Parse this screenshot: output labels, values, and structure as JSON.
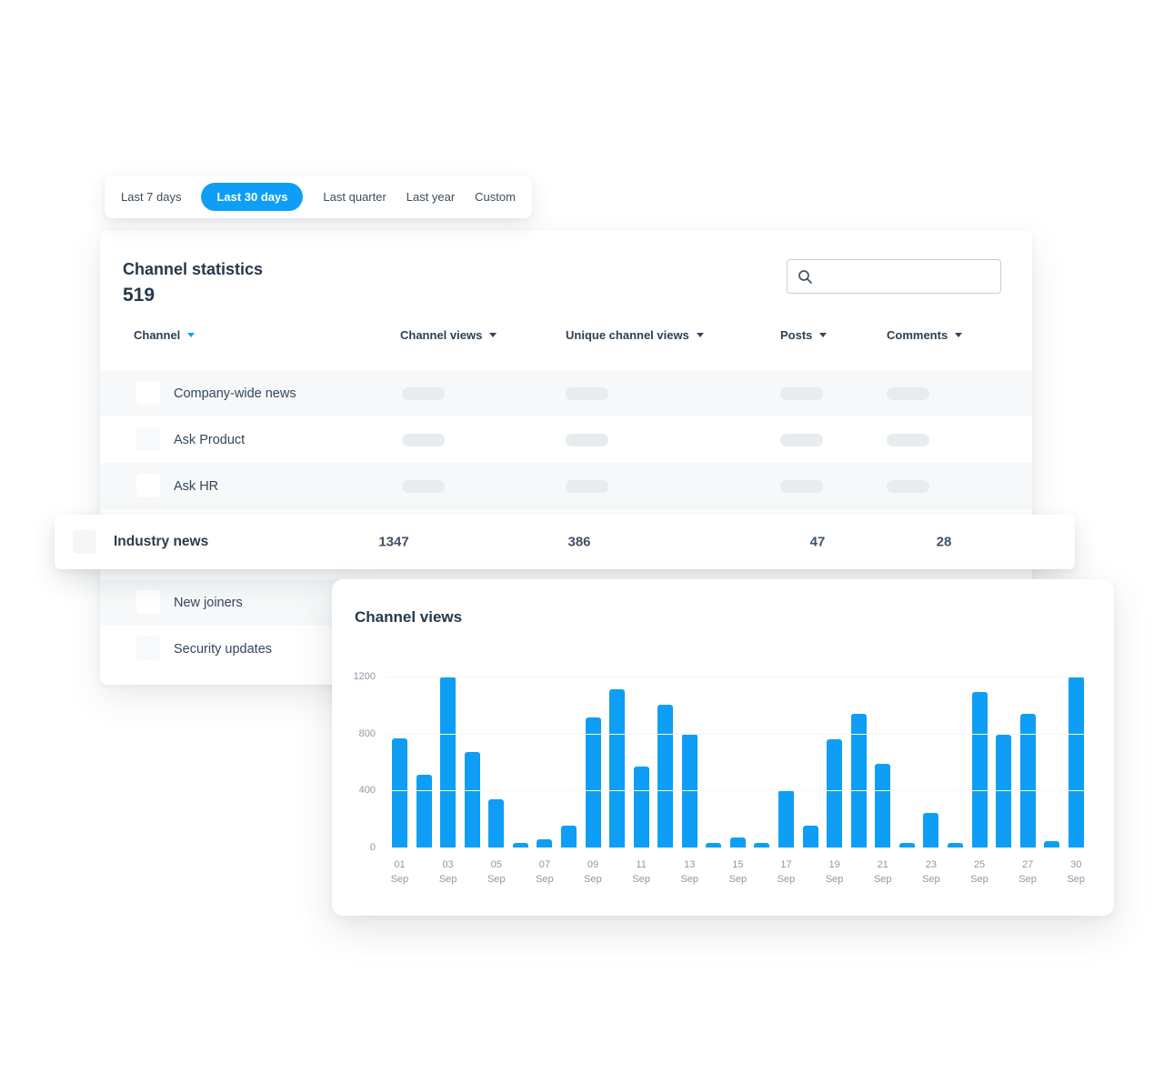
{
  "filters": {
    "items": [
      {
        "label": "Last 7 days",
        "active": false
      },
      {
        "label": "Last 30 days",
        "active": true
      },
      {
        "label": "Last quarter",
        "active": false
      },
      {
        "label": "Last year",
        "active": false
      },
      {
        "label": "Custom",
        "active": false
      }
    ]
  },
  "stats_card": {
    "title": "Channel statistics",
    "total": "519",
    "search": {
      "value": "",
      "placeholder": ""
    },
    "table": {
      "columns": [
        {
          "label": "Channel",
          "sorted": true
        },
        {
          "label": "Channel views",
          "sorted": false
        },
        {
          "label": "Unique channel views",
          "sorted": false
        },
        {
          "label": "Posts",
          "sorted": false
        },
        {
          "label": "Comments",
          "sorted": false
        }
      ],
      "rows": [
        {
          "name": "Company-wide news"
        },
        {
          "name": "Ask Product"
        },
        {
          "name": "Ask HR"
        },
        {
          "name": "New joiners"
        },
        {
          "name": "Security updates"
        }
      ],
      "highlighted_row": {
        "name": "Industry news",
        "channel_views": "1347",
        "unique_channel_views": "386",
        "posts": "47",
        "comments": "28"
      }
    }
  },
  "chart_card": {
    "title": "Channel views"
  },
  "chart_data": {
    "type": "bar",
    "title": "Channel views",
    "xlabel": "",
    "ylabel": "",
    "ylim": [
      0,
      1200
    ],
    "yticks": [
      0,
      400,
      800,
      1200
    ],
    "grid": "faint-horizontal",
    "legend": "none",
    "bar_color": "#0f9ef5",
    "bars": [
      {
        "date": "01 Sep",
        "value": 765,
        "label_shown": true
      },
      {
        "date": "02 Sep",
        "value": 510,
        "label_shown": false
      },
      {
        "date": "03 Sep",
        "value": 1200,
        "label_shown": true
      },
      {
        "date": "04 Sep",
        "value": 670,
        "label_shown": false
      },
      {
        "date": "05 Sep",
        "value": 340,
        "label_shown": true
      },
      {
        "date": "06 Sep",
        "value": 30,
        "label_shown": false
      },
      {
        "date": "07 Sep",
        "value": 55,
        "label_shown": true
      },
      {
        "date": "08 Sep",
        "value": 150,
        "label_shown": false
      },
      {
        "date": "09 Sep",
        "value": 915,
        "label_shown": true
      },
      {
        "date": "10 Sep",
        "value": 1110,
        "label_shown": false
      },
      {
        "date": "11 Sep",
        "value": 565,
        "label_shown": true
      },
      {
        "date": "12 Sep",
        "value": 1000,
        "label_shown": false
      },
      {
        "date": "13 Sep",
        "value": 795,
        "label_shown": true
      },
      {
        "date": "14 Sep",
        "value": 30,
        "label_shown": false
      },
      {
        "date": "15 Sep",
        "value": 70,
        "label_shown": true
      },
      {
        "date": "16 Sep",
        "value": 30,
        "label_shown": false
      },
      {
        "date": "17 Sep",
        "value": 405,
        "label_shown": true
      },
      {
        "date": "18 Sep",
        "value": 150,
        "label_shown": false
      },
      {
        "date": "19 Sep",
        "value": 760,
        "label_shown": true
      },
      {
        "date": "20 Sep",
        "value": 940,
        "label_shown": false
      },
      {
        "date": "21 Sep",
        "value": 585,
        "label_shown": true
      },
      {
        "date": "22 Sep",
        "value": 30,
        "label_shown": false
      },
      {
        "date": "23 Sep",
        "value": 245,
        "label_shown": true
      },
      {
        "date": "24 Sep",
        "value": 30,
        "label_shown": false
      },
      {
        "date": "25 Sep",
        "value": 1090,
        "label_shown": true
      },
      {
        "date": "26 Sep",
        "value": 790,
        "label_shown": false
      },
      {
        "date": "27 Sep",
        "value": 940,
        "label_shown": true
      },
      {
        "date": "28 Sep",
        "value": 45,
        "label_shown": false
      },
      {
        "date": "30 Sep",
        "value": 1200,
        "label_shown": true
      }
    ]
  },
  "colors": {
    "accent_blue": "#0f9ef5",
    "text_dark": "#263949",
    "text_body": "#33475c",
    "axis_gray": "#8d99a6",
    "row_stripe": "#f6f8f9",
    "placeholder_pill": "#e7ecef"
  }
}
